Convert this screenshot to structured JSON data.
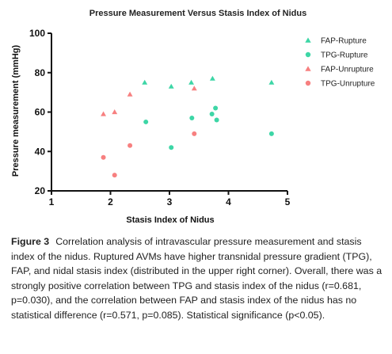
{
  "chart_data": {
    "type": "scatter",
    "title": "Pressure Measurement Versus Stasis Index of Nidus",
    "xlabel": "Stasis Index of Nidus",
    "ylabel": "Pressure measurement (mmHg)",
    "xlim": [
      1,
      5
    ],
    "ylim": [
      20,
      100
    ],
    "xticks": [
      1,
      2,
      3,
      4,
      5
    ],
    "yticks": [
      20,
      40,
      60,
      80,
      100
    ],
    "grid": false,
    "legend": "right",
    "series": [
      {
        "name": "FAP-Rupture",
        "marker": "triangle",
        "color": "#3dd6a6",
        "points": [
          [
            2.58,
            75
          ],
          [
            3.03,
            73
          ],
          [
            3.37,
            75
          ],
          [
            3.73,
            77
          ],
          [
            4.73,
            75
          ]
        ]
      },
      {
        "name": "TPG-Rupture",
        "marker": "circle",
        "color": "#3dd6a6",
        "points": [
          [
            2.6,
            55
          ],
          [
            3.03,
            42
          ],
          [
            3.38,
            57
          ],
          [
            3.72,
            59
          ],
          [
            3.78,
            62
          ],
          [
            3.8,
            56
          ],
          [
            4.73,
            49
          ]
        ]
      },
      {
        "name": "FAP-Unrupture",
        "marker": "triangle",
        "color": "#f78080",
        "points": [
          [
            1.88,
            59
          ],
          [
            2.07,
            60
          ],
          [
            2.33,
            69
          ],
          [
            3.42,
            72
          ]
        ]
      },
      {
        "name": "TPG-Unrupture",
        "marker": "circle",
        "color": "#f78080",
        "points": [
          [
            1.88,
            37
          ],
          [
            2.07,
            28
          ],
          [
            2.33,
            43
          ],
          [
            3.42,
            49
          ]
        ]
      }
    ]
  },
  "caption": {
    "label": "Figure 3",
    "text": "Correlation analysis of intravascular pressure measurement and stasis index of the nidus. Ruptured AVMs have higher transnidal pressure gradient (TPG), FAP, and nidal stasis index (distributed in the upper right corner). Overall, there was a strongly positive correlation between TPG and stasis index of the nidus (r=0.681, p=0.030), and the correlation between FAP and stasis index of the nidus has no statistical difference (r=0.571, p=0.085). Statistical significance (p<0.05)."
  }
}
